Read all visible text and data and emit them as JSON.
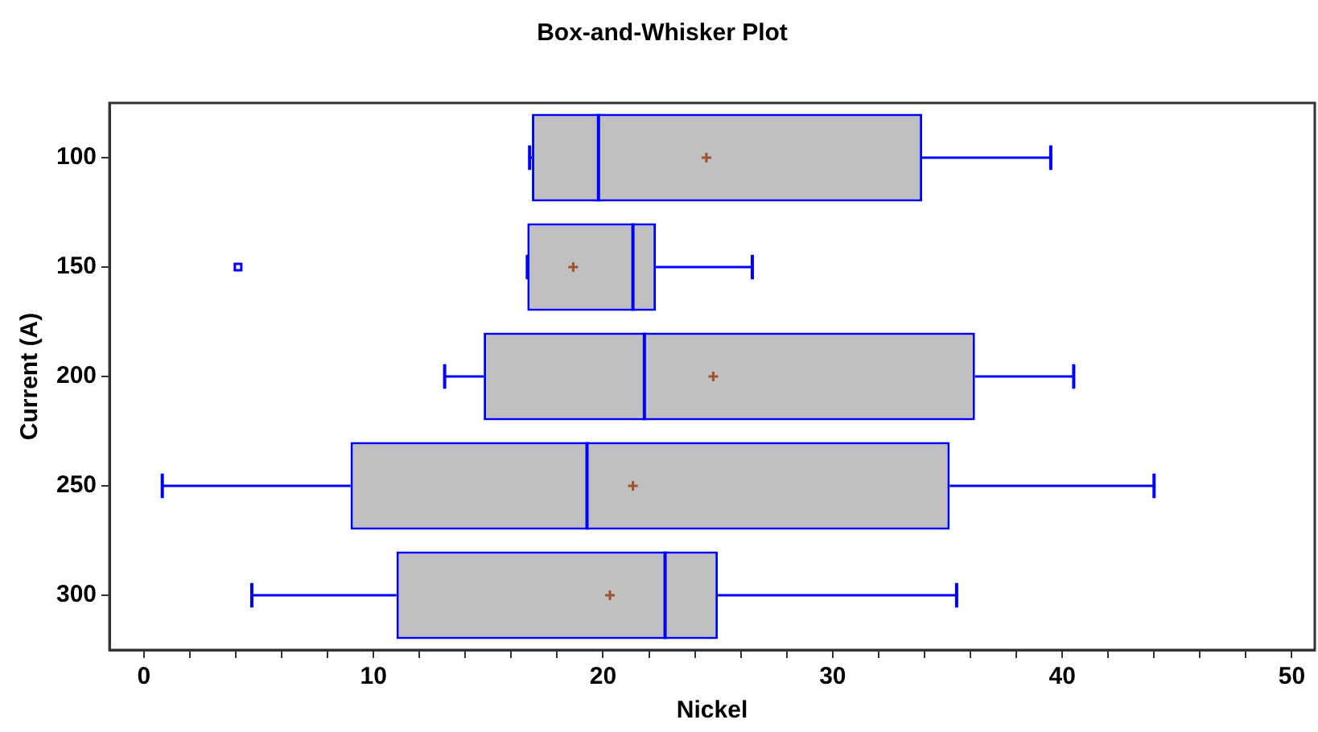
{
  "chart_data": {
    "type": "box",
    "title": "Box-and-Whisker Plot",
    "xlabel": "Nickel",
    "ylabel": "Current (A)",
    "orientation": "horizontal",
    "categories": [
      "100",
      "150",
      "200",
      "250",
      "300"
    ],
    "xlim": [
      -1.5,
      51
    ],
    "xticks": [
      0,
      {
        "value": 2,
        "label": null
      },
      {
        "value": 4,
        "label": null
      },
      {
        "value": 6,
        "label": null
      },
      {
        "value": 8,
        "label": null
      },
      10,
      {
        "value": 12,
        "label": null
      },
      {
        "value": 14,
        "label": null
      },
      {
        "value": 16,
        "label": null
      },
      {
        "value": 18,
        "label": null
      },
      20,
      {
        "value": 22,
        "label": null
      },
      {
        "value": 24,
        "label": null
      },
      {
        "value": 26,
        "label": null
      },
      {
        "value": 28,
        "label": null
      },
      30,
      {
        "value": 32,
        "label": null
      },
      {
        "value": 34,
        "label": null
      },
      {
        "value": 36,
        "label": null
      },
      {
        "value": 38,
        "label": null
      },
      40,
      {
        "value": 42,
        "label": null
      },
      {
        "value": 44,
        "label": null
      },
      {
        "value": 46,
        "label": null
      },
      {
        "value": 48,
        "label": null
      },
      50
    ],
    "grid": false,
    "legend": false,
    "series": [
      {
        "color": "#0000ff",
        "boxes": [
          {
            "low": 16.8,
            "q1": 16.9,
            "median": 19.8,
            "q3": 33.9,
            "high": 39.5,
            "mean": 24.5
          },
          {
            "low": 16.7,
            "q1": 16.7,
            "median": 21.3,
            "q3": 22.3,
            "high": 26.5,
            "mean": 18.7,
            "outliers": [
              4.1
            ]
          },
          {
            "low": 13.1,
            "q1": 14.8,
            "median": 21.8,
            "q3": 36.2,
            "high": 40.5,
            "mean": 24.8
          },
          {
            "low": 0.8,
            "q1": 9.0,
            "median": 19.3,
            "q3": 35.1,
            "high": 44.0,
            "mean": 21.3
          },
          {
            "low": 4.7,
            "q1": 11.0,
            "median": 22.7,
            "q3": 25.0,
            "high": 35.4,
            "mean": 20.3
          }
        ]
      }
    ]
  }
}
